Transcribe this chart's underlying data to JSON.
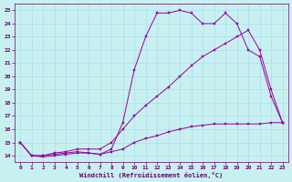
{
  "xlabel": "Windchill (Refroidissement éolien,°C)",
  "background_color": "#c8f0f0",
  "grid_color": "#aaddee",
  "line_color": "#990099",
  "xlim_min": -0.5,
  "xlim_max": 23.5,
  "ylim_min": 13.5,
  "ylim_max": 25.5,
  "yticks": [
    14,
    15,
    16,
    17,
    18,
    19,
    20,
    21,
    22,
    23,
    24,
    25
  ],
  "xticks": [
    0,
    1,
    2,
    3,
    4,
    5,
    6,
    7,
    8,
    9,
    10,
    11,
    12,
    13,
    14,
    15,
    16,
    17,
    18,
    19,
    20,
    21,
    22,
    23
  ],
  "line1_x": [
    0,
    1,
    2,
    3,
    4,
    5,
    6,
    7,
    8,
    9,
    10,
    11,
    12,
    13,
    14,
    15,
    16,
    17,
    18,
    19,
    20,
    21,
    22,
    23
  ],
  "line1_y": [
    15.0,
    14.0,
    14.0,
    14.1,
    14.2,
    14.3,
    14.2,
    14.1,
    14.3,
    14.5,
    15.0,
    15.3,
    15.5,
    15.8,
    16.0,
    16.2,
    16.3,
    16.4,
    16.4,
    16.4,
    16.4,
    16.4,
    16.5,
    16.5
  ],
  "line2_x": [
    0,
    1,
    2,
    3,
    4,
    5,
    6,
    7,
    8,
    9,
    10,
    11,
    12,
    13,
    14,
    15,
    16,
    17,
    18,
    19,
    20,
    21,
    22,
    23
  ],
  "line2_y": [
    15.0,
    14.0,
    14.0,
    14.2,
    14.3,
    14.5,
    14.5,
    14.5,
    15.0,
    16.0,
    17.0,
    17.8,
    18.5,
    19.2,
    20.0,
    20.8,
    21.5,
    22.0,
    22.5,
    23.0,
    23.5,
    22.0,
    19.0,
    16.5
  ],
  "line3_x": [
    0,
    1,
    2,
    3,
    4,
    5,
    6,
    7,
    8,
    9,
    10,
    11,
    12,
    13,
    14,
    15,
    16,
    17,
    18,
    19,
    20,
    21,
    22,
    23
  ],
  "line3_y": [
    15.0,
    14.0,
    13.9,
    14.0,
    14.1,
    14.2,
    14.2,
    14.1,
    14.5,
    16.5,
    20.5,
    23.0,
    24.8,
    24.8,
    25.0,
    24.8,
    24.0,
    24.0,
    24.8,
    24.0,
    22.0,
    21.5,
    18.5,
    16.5
  ]
}
